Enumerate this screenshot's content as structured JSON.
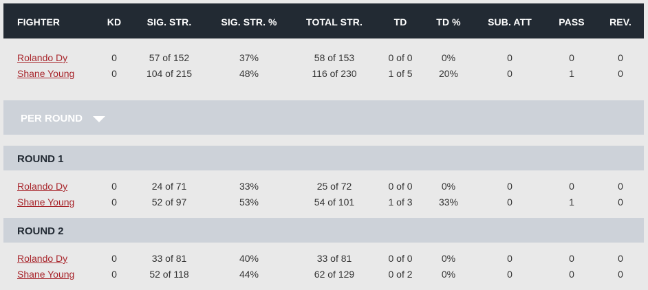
{
  "headers": [
    "FIGHTER",
    "KD",
    "SIG. STR.",
    "SIG. STR. %",
    "TOTAL STR.",
    "TD",
    "TD %",
    "SUB. ATT",
    "PASS",
    "REV."
  ],
  "totals": [
    {
      "fighter": "Rolando Dy",
      "kd": "0",
      "sig_str": "57 of 152",
      "sig_pct": "37%",
      "total_str": "58 of 153",
      "td": "0 of 0",
      "td_pct": "0%",
      "sub_att": "0",
      "pass": "0",
      "rev": "0"
    },
    {
      "fighter": "Shane Young",
      "kd": "0",
      "sig_str": "104 of 215",
      "sig_pct": "48%",
      "total_str": "116 of 230",
      "td": "1 of 5",
      "td_pct": "20%",
      "sub_att": "0",
      "pass": "1",
      "rev": "0"
    }
  ],
  "per_round_label": "PER ROUND",
  "rounds": [
    {
      "title": "ROUND 1",
      "rows": [
        {
          "fighter": "Rolando Dy",
          "kd": "0",
          "sig_str": "24 of 71",
          "sig_pct": "33%",
          "total_str": "25 of 72",
          "td": "0 of 0",
          "td_pct": "0%",
          "sub_att": "0",
          "pass": "0",
          "rev": "0"
        },
        {
          "fighter": "Shane Young",
          "kd": "0",
          "sig_str": "52 of 97",
          "sig_pct": "53%",
          "total_str": "54 of 101",
          "td": "1 of 3",
          "td_pct": "33%",
          "sub_att": "0",
          "pass": "1",
          "rev": "0"
        }
      ]
    },
    {
      "title": "ROUND 2",
      "rows": [
        {
          "fighter": "Rolando Dy",
          "kd": "0",
          "sig_str": "33 of 81",
          "sig_pct": "40%",
          "total_str": "33 of 81",
          "td": "0 of 0",
          "td_pct": "0%",
          "sub_att": "0",
          "pass": "0",
          "rev": "0"
        },
        {
          "fighter": "Shane Young",
          "kd": "0",
          "sig_str": "52 of 118",
          "sig_pct": "44%",
          "total_str": "62 of 129",
          "td": "0 of 2",
          "td_pct": "0%",
          "sub_att": "0",
          "pass": "0",
          "rev": "0"
        }
      ]
    }
  ]
}
